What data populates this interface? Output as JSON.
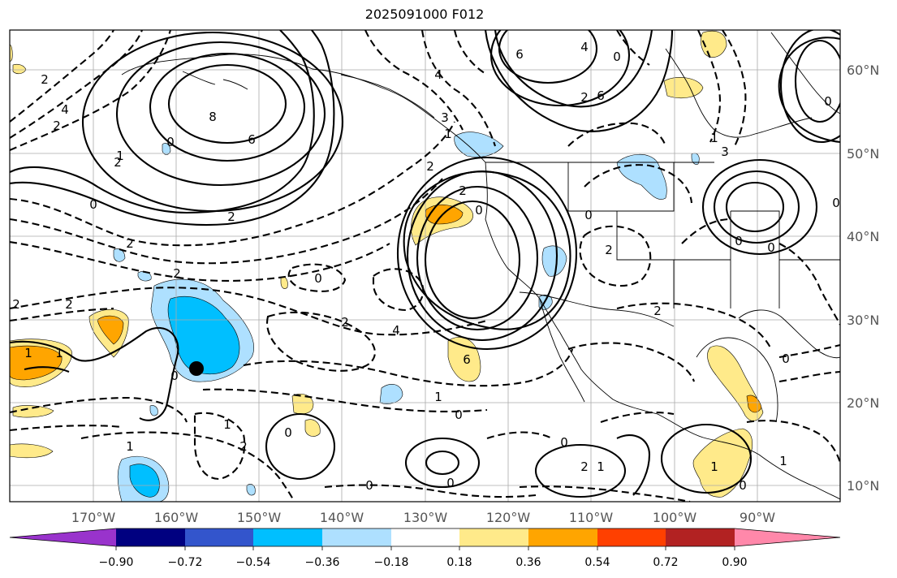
{
  "title": "2025091000 F012",
  "lon_labels": [
    "170°W",
    "160°W",
    "150°W",
    "140°W",
    "130°W",
    "120°W",
    "110°W",
    "100°W",
    "90°W"
  ],
  "lat_labels": [
    "60°N",
    "50°N",
    "40°N",
    "30°N",
    "20°N",
    "10°N"
  ],
  "colorbar": {
    "colors": [
      "#9933cc",
      "#000080",
      "#3355cc",
      "#00bfff",
      "#aee0ff",
      "#ffffff",
      "#ffea8a",
      "#ffa500",
      "#ff4000",
      "#b22222",
      "#ff88aa"
    ],
    "tick_labels": [
      "−0.90",
      "−0.72",
      "−0.54",
      "−0.36",
      "−0.18",
      "0.18",
      "0.36",
      "0.54",
      "0.72",
      "0.90"
    ]
  },
  "contour_labels": [
    "2",
    "4",
    "2",
    "0",
    "6",
    "8",
    "1",
    "2",
    "0",
    "2",
    "2",
    "2",
    "4",
    "6",
    "4",
    "0",
    "6",
    "2",
    "3",
    "1",
    "2",
    "2",
    "0",
    "0",
    "1",
    "3",
    "2",
    "2",
    "0",
    "2",
    "2",
    "0",
    "0",
    "2",
    "4",
    "6",
    "1",
    "0",
    "2",
    "1",
    "0",
    "1",
    "2",
    "1",
    "0",
    "0",
    "0",
    "0",
    "1",
    "0",
    "1",
    "0",
    "1",
    "1",
    "0",
    "0"
  ]
}
